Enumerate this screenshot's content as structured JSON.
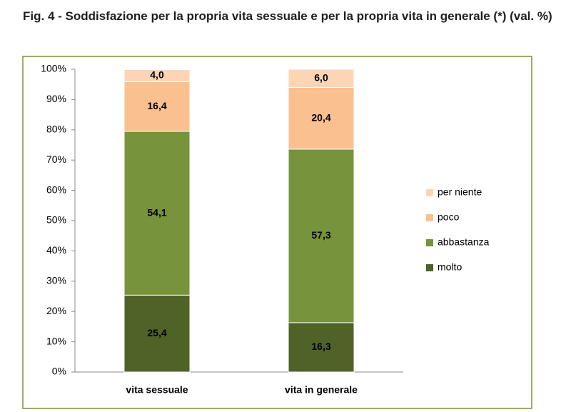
{
  "chart_data": {
    "type": "stacked_bar",
    "title": "Fig. 4 - Soddisfazione per la propria vita sessuale e per la propria vita in generale (*) (val. %)",
    "categories": [
      "vita sessuale",
      "vita in generale"
    ],
    "series": [
      {
        "name": "molto",
        "color": "#4f6228",
        "values": [
          25.4,
          16.3
        ],
        "value_labels": [
          "25,4",
          "16,3"
        ]
      },
      {
        "name": "abbastanza",
        "color": "#77933c",
        "values": [
          54.1,
          57.3
        ],
        "value_labels": [
          "54,1",
          "57,3"
        ]
      },
      {
        "name": "poco",
        "color": "#fac090",
        "values": [
          16.4,
          20.4
        ],
        "value_labels": [
          "16,4",
          "20,4"
        ]
      },
      {
        "name": "per niente",
        "color": "#fcd5b5",
        "values": [
          4.0,
          6.0
        ],
        "value_labels": [
          "4,0",
          "6,0"
        ]
      }
    ],
    "ylim": [
      0,
      100
    ],
    "yticks": [
      {
        "value": 0,
        "label": "0%"
      },
      {
        "value": 10,
        "label": "10%"
      },
      {
        "value": 20,
        "label": "20%"
      },
      {
        "value": 30,
        "label": "30%"
      },
      {
        "value": 40,
        "label": "40%"
      },
      {
        "value": 50,
        "label": "50%"
      },
      {
        "value": 60,
        "label": "60%"
      },
      {
        "value": 70,
        "label": "70%"
      },
      {
        "value": 80,
        "label": "80%"
      },
      {
        "value": 90,
        "label": "90%"
      },
      {
        "value": 100,
        "label": "100%"
      }
    ],
    "legend": "right"
  }
}
